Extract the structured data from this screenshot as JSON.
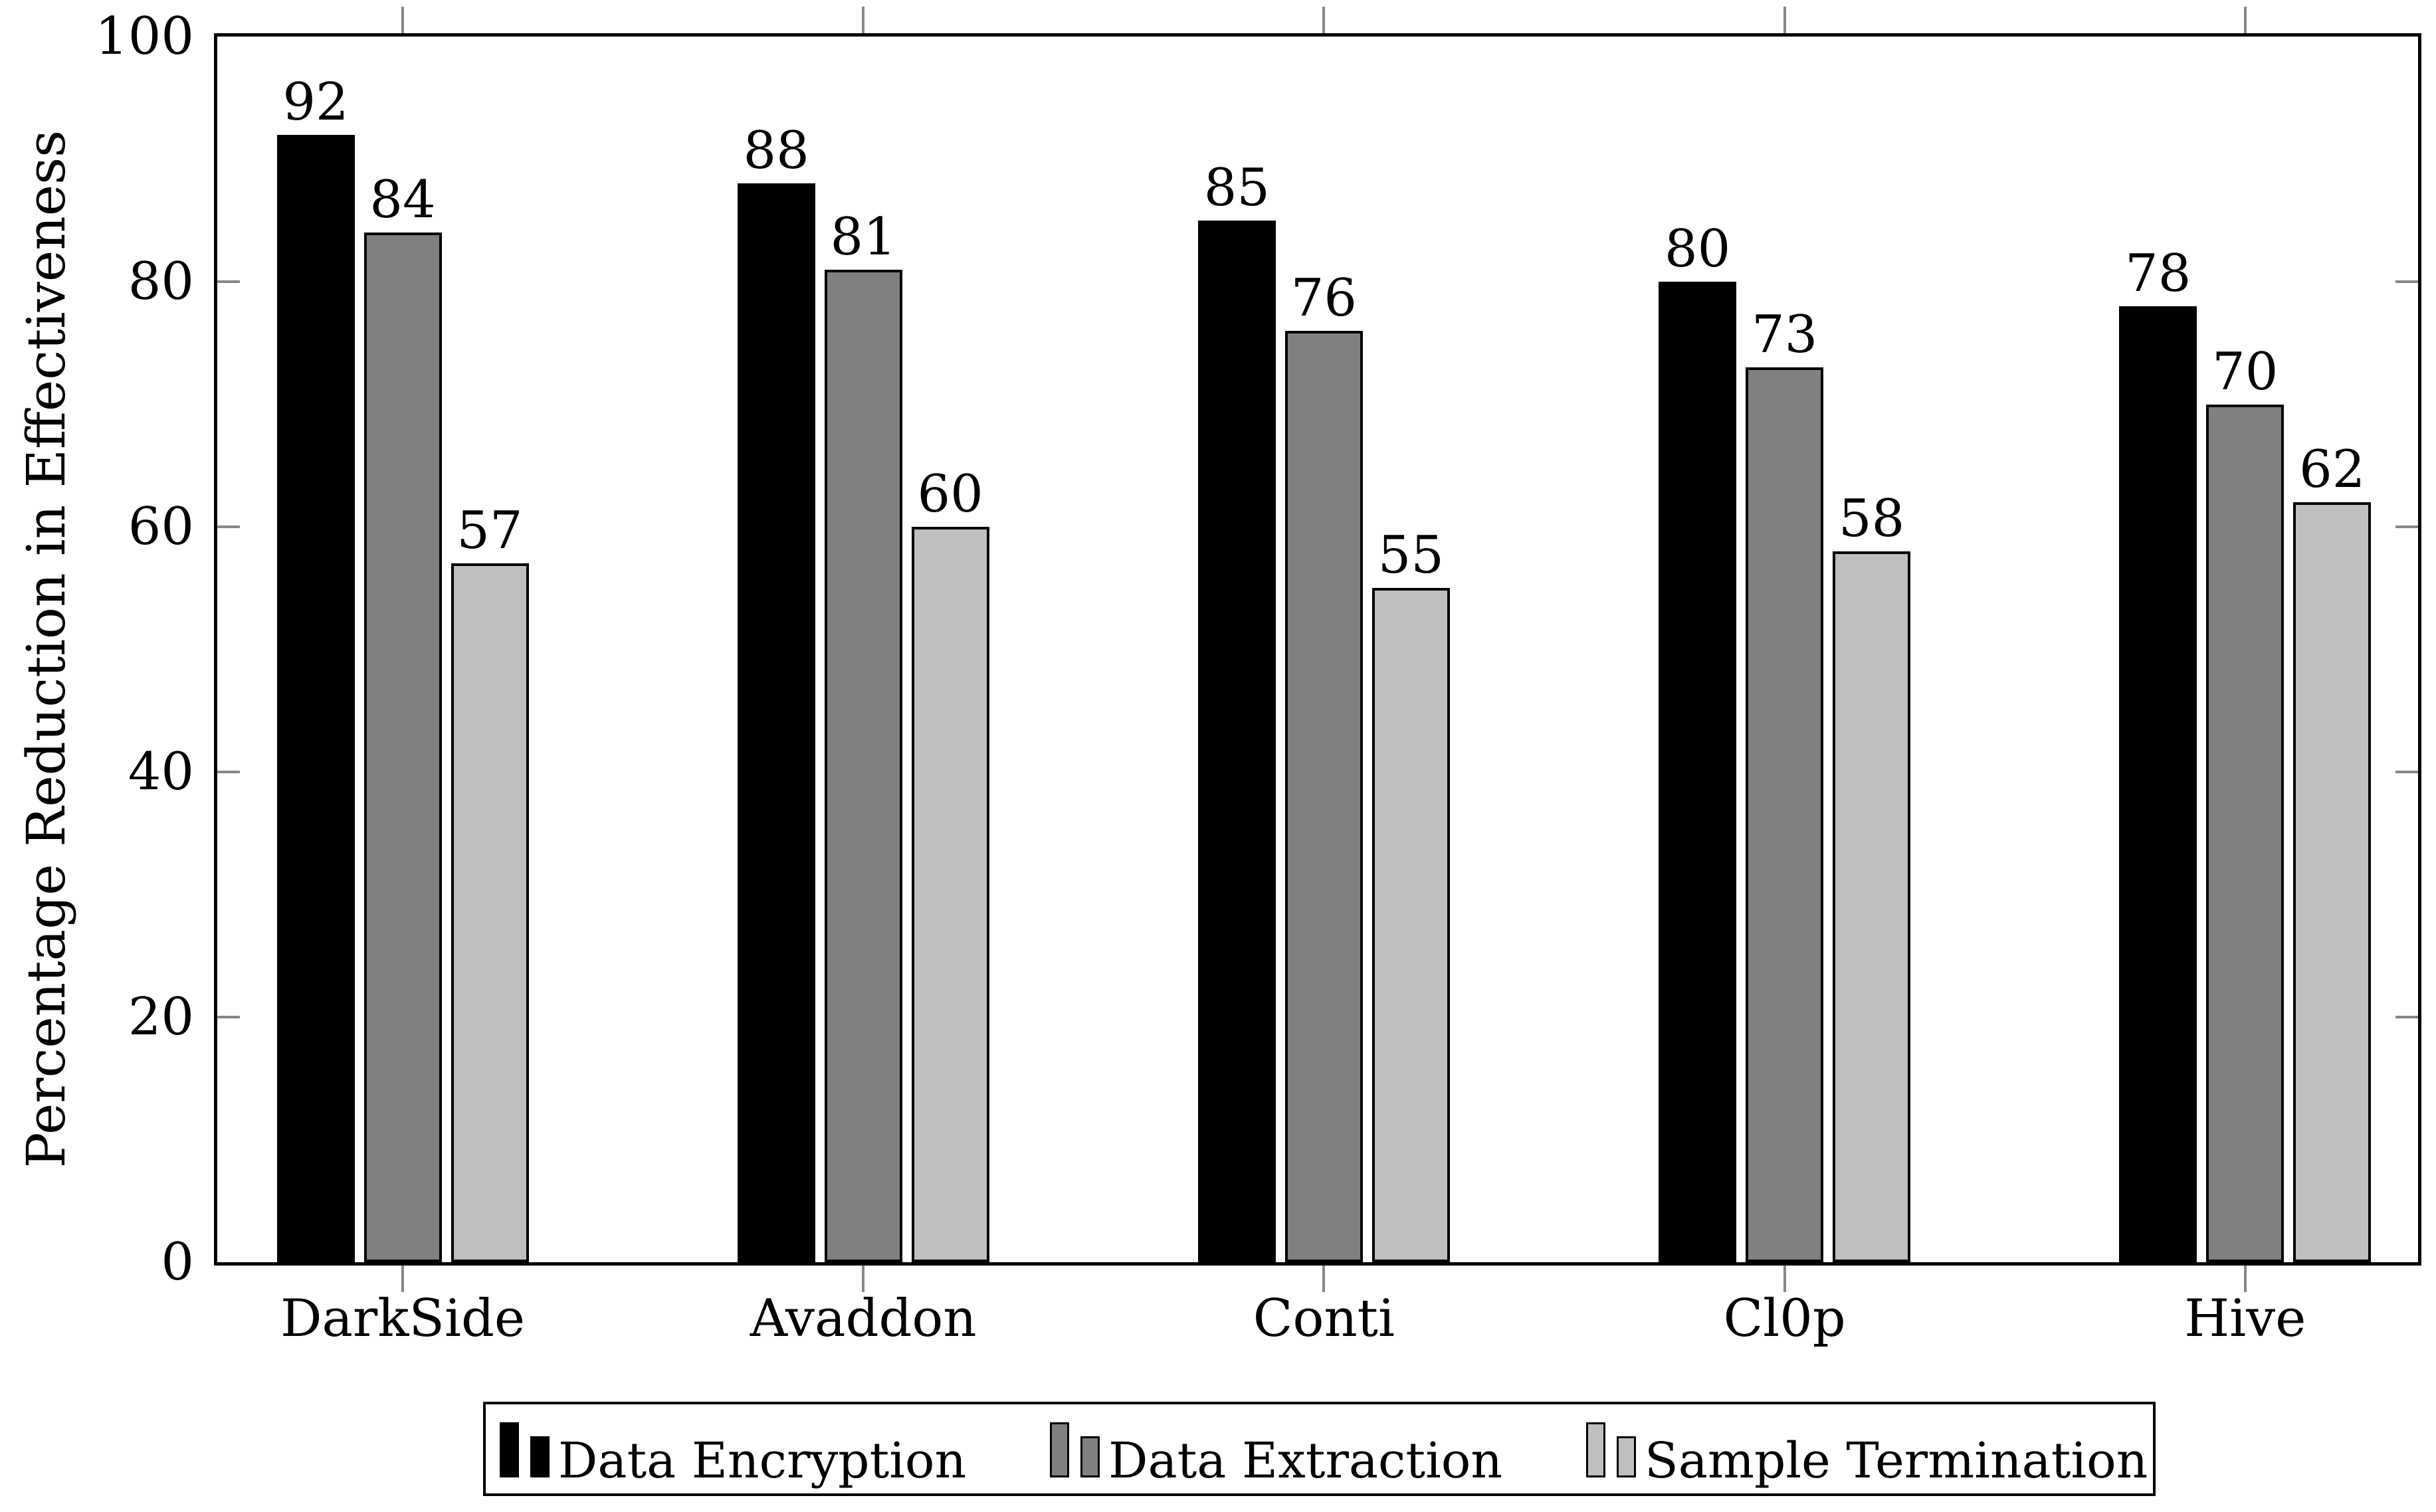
{
  "chart_data": {
    "type": "bar",
    "title": "",
    "categories": [
      "DarkSide",
      "Avaddon",
      "Conti",
      "Cl0p",
      "Hive"
    ],
    "series": [
      {
        "name": "Data Encryption",
        "color": "#000000",
        "values": [
          92,
          88,
          85,
          80,
          78
        ]
      },
      {
        "name": "Data Extraction",
        "color": "#808080",
        "values": [
          84,
          81,
          76,
          73,
          70
        ]
      },
      {
        "name": "Sample Termination",
        "color": "#bfbfbf",
        "values": [
          57,
          60,
          55,
          58,
          62
        ]
      }
    ],
    "xlabel": "",
    "ylabel": "Percentage Reduction in Effectiveness",
    "ylim": [
      0,
      100
    ],
    "yticks": [
      0,
      20,
      40,
      60,
      80,
      100
    ],
    "bar_value_labels": true,
    "grid": false,
    "legend_position": "below-center",
    "axis_color": "#000000",
    "tick_color": "#878787",
    "background_color": "#ffffff"
  }
}
